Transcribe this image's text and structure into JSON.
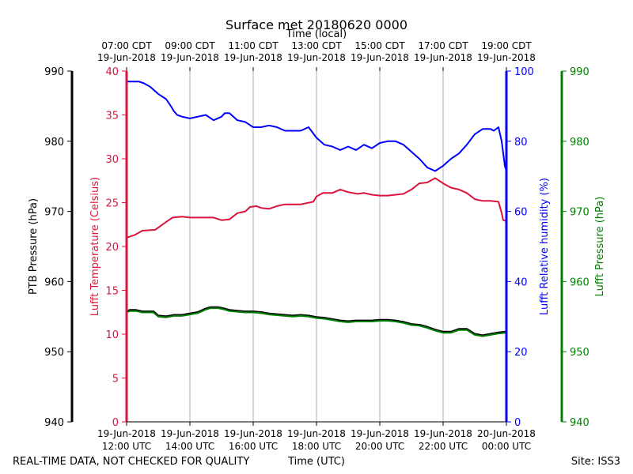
{
  "chart_data": {
    "type": "line",
    "title": "Surface met 20180620 0000",
    "top_axis": {
      "label": "Time (local)",
      "ticks": [
        {
          "x": 0,
          "line1": "07:00 CDT",
          "line2": "19-Jun-2018"
        },
        {
          "x": 2,
          "line1": "09:00 CDT",
          "line2": "19-Jun-2018"
        },
        {
          "x": 4,
          "line1": "11:00 CDT",
          "line2": "19-Jun-2018"
        },
        {
          "x": 6,
          "line1": "13:00 CDT",
          "line2": "19-Jun-2018"
        },
        {
          "x": 8,
          "line1": "15:00 CDT",
          "line2": "19-Jun-2018"
        },
        {
          "x": 10,
          "line1": "17:00 CDT",
          "line2": "19-Jun-2018"
        },
        {
          "x": 12,
          "line1": "19:00 CDT",
          "line2": "19-Jun-2018"
        }
      ]
    },
    "bottom_axis": {
      "label": "Time (UTC)",
      "xlim": [
        0,
        12
      ],
      "ticks": [
        {
          "x": 0,
          "line1": "19-Jun-2018",
          "line2": "12:00 UTC"
        },
        {
          "x": 2,
          "line1": "19-Jun-2018",
          "line2": "14:00 UTC"
        },
        {
          "x": 4,
          "line1": "19-Jun-2018",
          "line2": "16:00 UTC"
        },
        {
          "x": 6,
          "line1": "19-Jun-2018",
          "line2": "18:00 UTC"
        },
        {
          "x": 8,
          "line1": "19-Jun-2018",
          "line2": "20:00 UTC"
        },
        {
          "x": 10,
          "line1": "19-Jun-2018",
          "line2": "22:00 UTC"
        },
        {
          "x": 12,
          "line1": "20-Jun-2018",
          "line2": "00:00 UTC"
        }
      ]
    },
    "y_axes": {
      "ptb_pressure": {
        "label": "PTB Pressure (hPa)",
        "color": "#000000",
        "ylim": [
          940,
          990
        ],
        "ticks": [
          940,
          950,
          960,
          970,
          980,
          990
        ]
      },
      "temperature": {
        "label": "Lufft Temperature (Celsius)",
        "color": "#dc143c",
        "ylim": [
          0,
          40
        ],
        "ticks": [
          0,
          5,
          10,
          15,
          20,
          25,
          30,
          35,
          40
        ]
      },
      "humidity": {
        "label": "Lufft Relative humidity (%)",
        "color": "#0000ff",
        "ylim": [
          0,
          100
        ],
        "ticks": [
          0,
          20,
          40,
          60,
          80,
          100
        ]
      },
      "lufft_pressure": {
        "label": "Lufft Pressure (hPa)",
        "color": "#008000",
        "ylim": [
          940,
          990
        ],
        "ticks": [
          940,
          950,
          960,
          970,
          980,
          990
        ]
      }
    },
    "grid": true,
    "series": [
      {
        "name": "Lufft Temperature",
        "axis": "temperature",
        "color": "#dc143c",
        "x": [
          0,
          0.25,
          0.5,
          0.9,
          1.25,
          1.45,
          1.75,
          2.0,
          2.5,
          2.75,
          3.0,
          3.25,
          3.5,
          3.75,
          3.9,
          4.1,
          4.25,
          4.5,
          4.75,
          5.0,
          5.5,
          5.9,
          6.0,
          6.2,
          6.5,
          6.75,
          7.0,
          7.3,
          7.5,
          7.75,
          8.0,
          8.25,
          8.5,
          8.75,
          9.0,
          9.25,
          9.5,
          9.75,
          10.0,
          10.25,
          10.5,
          10.75,
          11.0,
          11.25,
          11.5,
          11.75,
          11.85,
          11.9,
          12.0
        ],
        "values": [
          21.0,
          21.3,
          21.8,
          21.9,
          22.8,
          23.3,
          23.4,
          23.3,
          23.3,
          23.3,
          23.0,
          23.1,
          23.8,
          24.0,
          24.5,
          24.6,
          24.4,
          24.3,
          24.6,
          24.8,
          24.8,
          25.1,
          25.7,
          26.1,
          26.1,
          26.5,
          26.2,
          26.0,
          26.1,
          25.9,
          25.8,
          25.8,
          25.9,
          26.0,
          26.5,
          27.2,
          27.3,
          27.8,
          27.2,
          26.7,
          26.5,
          26.1,
          25.4,
          25.2,
          25.2,
          25.1,
          23.8,
          23.0,
          22.9
        ]
      },
      {
        "name": "Lufft Relative humidity",
        "axis": "humidity",
        "color": "#0000ff",
        "x": [
          0,
          0.2,
          0.4,
          0.55,
          0.75,
          1.0,
          1.25,
          1.4,
          1.5,
          1.6,
          1.75,
          2.0,
          2.25,
          2.5,
          2.75,
          3.0,
          3.1,
          3.25,
          3.5,
          3.75,
          4.0,
          4.25,
          4.5,
          4.75,
          5.0,
          5.25,
          5.5,
          5.75,
          6.0,
          6.25,
          6.5,
          6.75,
          7.0,
          7.25,
          7.5,
          7.75,
          8.0,
          8.25,
          8.5,
          8.75,
          9.0,
          9.25,
          9.5,
          9.75,
          10.0,
          10.25,
          10.5,
          10.75,
          11.0,
          11.25,
          11.5,
          11.6,
          11.75,
          11.85,
          11.95,
          12.0
        ],
        "values": [
          97.0,
          97.0,
          97.0,
          96.5,
          95.5,
          93.5,
          92.0,
          90.0,
          88.5,
          87.5,
          87.0,
          86.5,
          87.0,
          87.5,
          86.0,
          87.0,
          88.0,
          88.0,
          86.0,
          85.5,
          84.0,
          84.0,
          84.5,
          84.0,
          83.0,
          83.0,
          83.0,
          84.0,
          81.0,
          79.0,
          78.5,
          77.5,
          78.5,
          77.5,
          79.0,
          78.0,
          79.5,
          80.0,
          80.0,
          79.0,
          77.0,
          75.0,
          72.5,
          71.5,
          73.0,
          75.0,
          76.5,
          79.0,
          82.0,
          83.5,
          83.5,
          83.0,
          84.0,
          80.0,
          73.0,
          71.5
        ]
      },
      {
        "name": "PTB Pressure",
        "axis": "ptb_pressure",
        "color": "#000000",
        "x": [
          0,
          0.1,
          0.3,
          0.5,
          0.7,
          0.85,
          1.0,
          1.25,
          1.5,
          1.75,
          2.0,
          2.25,
          2.5,
          2.65,
          2.9,
          3.1,
          3.25,
          3.5,
          3.75,
          4.0,
          4.25,
          4.5,
          4.75,
          5.0,
          5.25,
          5.5,
          5.75,
          6.0,
          6.25,
          6.5,
          6.75,
          7.0,
          7.25,
          7.5,
          7.75,
          8.0,
          8.25,
          8.5,
          8.75,
          9.0,
          9.25,
          9.5,
          9.75,
          10.0,
          10.25,
          10.5,
          10.75,
          11.0,
          11.25,
          11.5,
          11.75,
          12.0
        ],
        "values": [
          955.7,
          955.9,
          955.9,
          955.7,
          955.7,
          955.7,
          955.1,
          955.0,
          955.2,
          955.2,
          955.4,
          955.6,
          956.1,
          956.3,
          956.3,
          956.1,
          955.9,
          955.8,
          955.7,
          955.7,
          955.6,
          955.4,
          955.3,
          955.2,
          955.1,
          955.2,
          955.1,
          954.9,
          954.8,
          954.6,
          954.4,
          954.3,
          954.4,
          954.4,
          954.4,
          954.5,
          954.5,
          954.4,
          954.2,
          953.9,
          953.8,
          953.5,
          953.1,
          952.8,
          952.8,
          953.2,
          953.2,
          952.5,
          952.3,
          952.5,
          952.7,
          952.8
        ]
      },
      {
        "name": "Lufft Pressure",
        "axis": "lufft_pressure",
        "color": "#008000",
        "x": [
          0,
          0.1,
          0.3,
          0.5,
          0.7,
          0.85,
          1.0,
          1.25,
          1.5,
          1.75,
          2.0,
          2.25,
          2.5,
          2.65,
          2.9,
          3.1,
          3.25,
          3.5,
          3.75,
          4.0,
          4.25,
          4.5,
          4.75,
          5.0,
          5.25,
          5.5,
          5.75,
          6.0,
          6.25,
          6.5,
          6.75,
          7.0,
          7.25,
          7.5,
          7.75,
          8.0,
          8.25,
          8.5,
          8.75,
          9.0,
          9.25,
          9.5,
          9.75,
          10.0,
          10.25,
          10.5,
          10.75,
          11.0,
          11.25,
          11.5,
          11.75,
          12.0
        ],
        "values": [
          955.6,
          955.8,
          955.8,
          955.6,
          955.6,
          955.6,
          955.0,
          954.9,
          955.1,
          955.1,
          955.3,
          955.5,
          956.0,
          956.2,
          956.2,
          956.0,
          955.8,
          955.7,
          955.6,
          955.6,
          955.5,
          955.3,
          955.2,
          955.1,
          955.0,
          955.1,
          955.0,
          954.8,
          954.7,
          954.5,
          954.3,
          954.2,
          954.3,
          954.3,
          954.3,
          954.4,
          954.4,
          954.3,
          954.1,
          953.8,
          953.7,
          953.4,
          953.0,
          952.7,
          952.7,
          953.1,
          953.1,
          952.4,
          952.2,
          952.4,
          952.6,
          952.7
        ]
      }
    ]
  },
  "footer": {
    "quality_note": "REAL-TIME DATA, NOT CHECKED FOR QUALITY",
    "site": "Site: ISS3"
  }
}
